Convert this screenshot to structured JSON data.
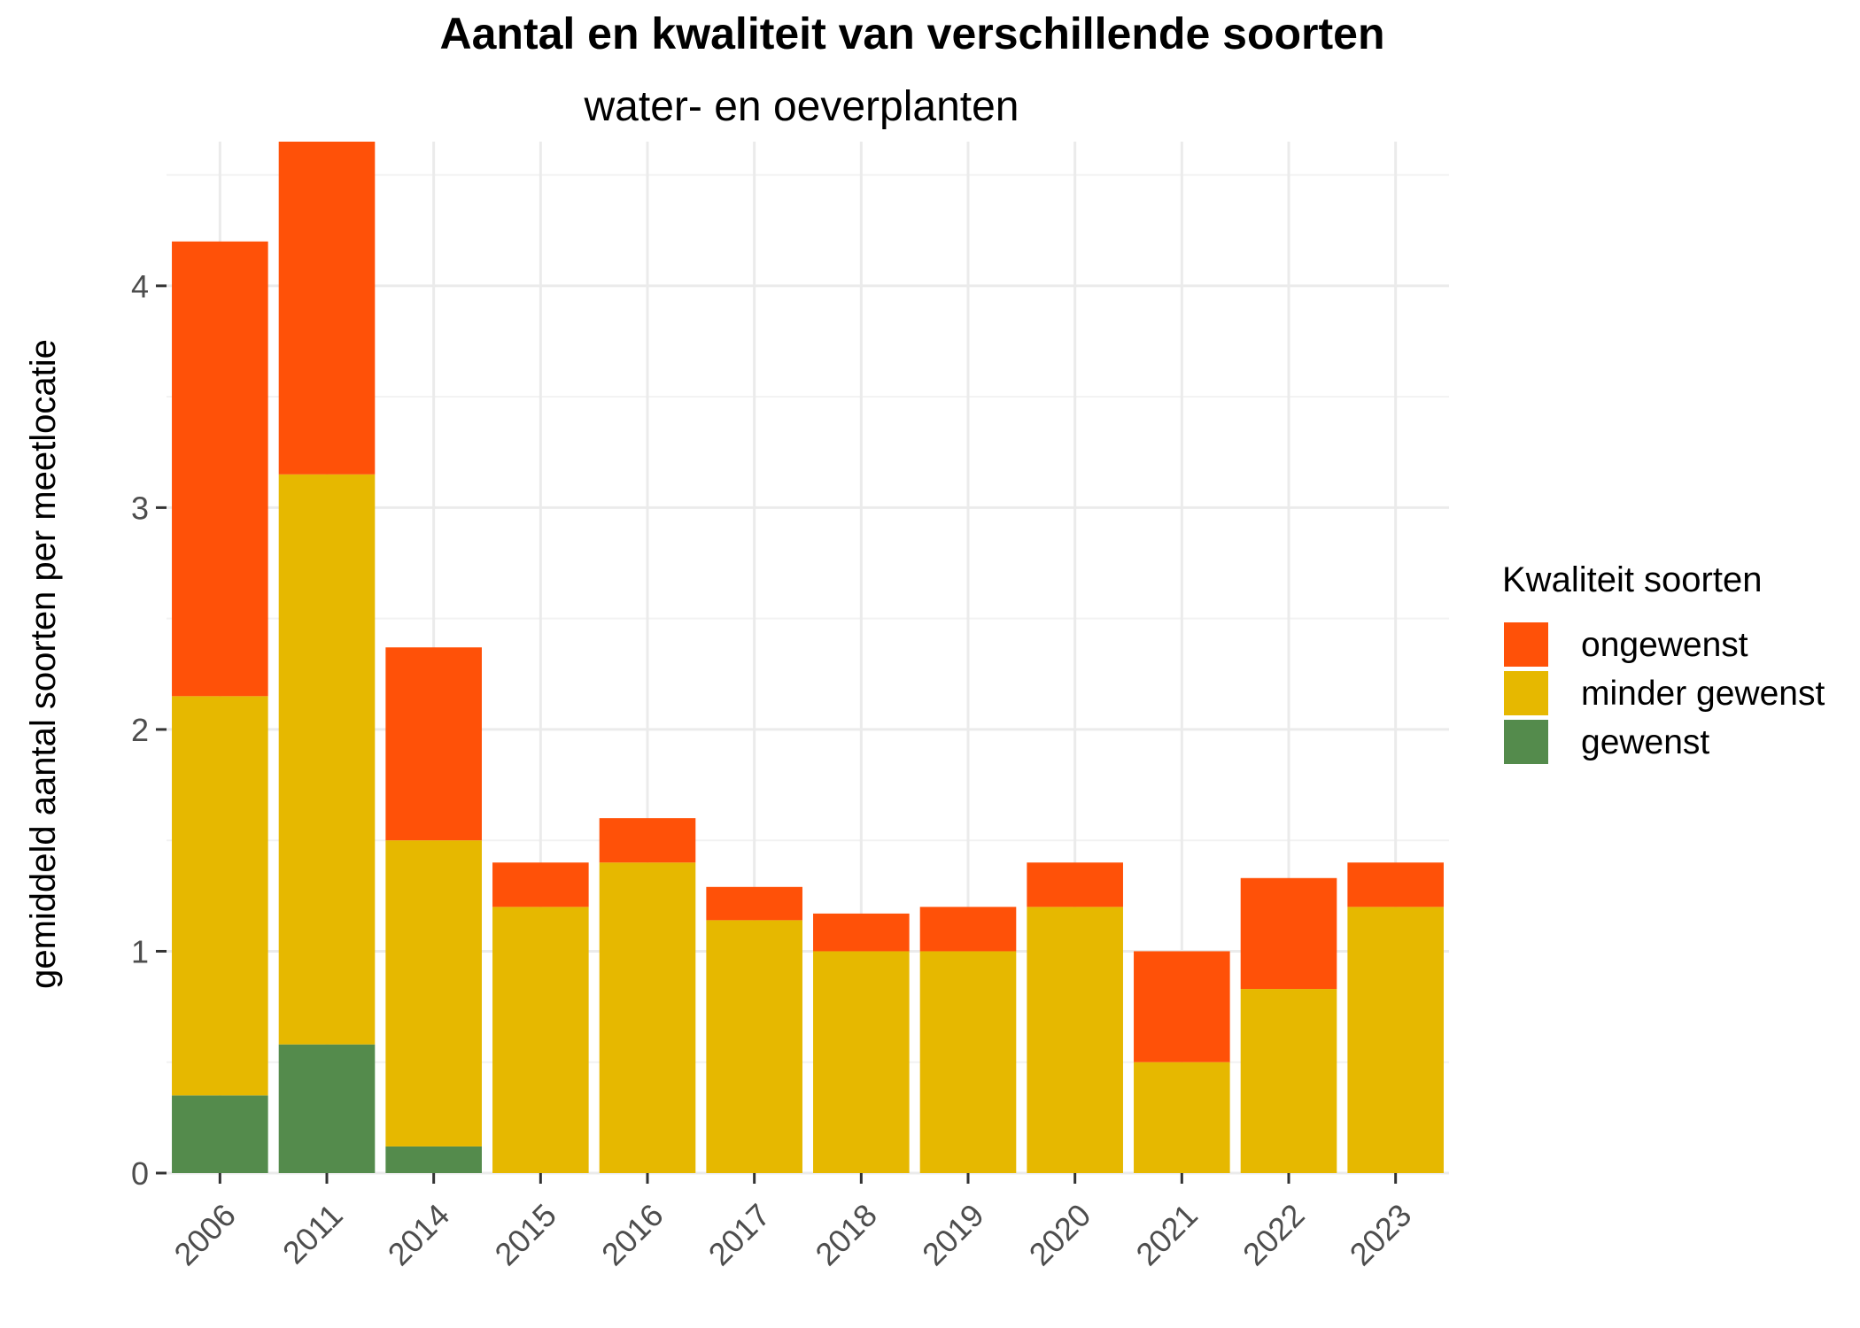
{
  "chart_data": {
    "type": "bar",
    "stacked": true,
    "title": "Aantal en kwaliteit van verschillende soorten",
    "subtitle": "water- en oeverplanten",
    "xlabel": "",
    "ylabel": "gemiddeld aantal soorten per meetlocatie",
    "ylim": [
      0,
      4.65
    ],
    "yticks": [
      0,
      1,
      2,
      3,
      4
    ],
    "grid": true,
    "legend_position": "right",
    "categories": [
      "2006",
      "2011",
      "2014",
      "2015",
      "2016",
      "2017",
      "2018",
      "2019",
      "2020",
      "2021",
      "2022",
      "2023"
    ],
    "legend": {
      "title": "Kwaliteit soorten",
      "entries": [
        "ongewenst",
        "minder gewenst",
        "gewenst"
      ]
    },
    "series": [
      {
        "name": "gewenst",
        "color": "#548b4c",
        "values": [
          0.35,
          0.58,
          0.12,
          0,
          0,
          0,
          0,
          0,
          0,
          0,
          0,
          0
        ]
      },
      {
        "name": "minder gewenst",
        "color": "#e6b800",
        "values": [
          1.8,
          2.57,
          1.38,
          1.2,
          1.4,
          1.14,
          1.0,
          1.0,
          1.2,
          0.5,
          0.83,
          1.2
        ]
      },
      {
        "name": "ongewenst",
        "color": "#ff5108",
        "values": [
          2.05,
          1.5,
          0.87,
          0.2,
          0.2,
          0.15,
          0.17,
          0.2,
          0.2,
          0.5,
          0.5,
          0.2
        ]
      }
    ]
  }
}
